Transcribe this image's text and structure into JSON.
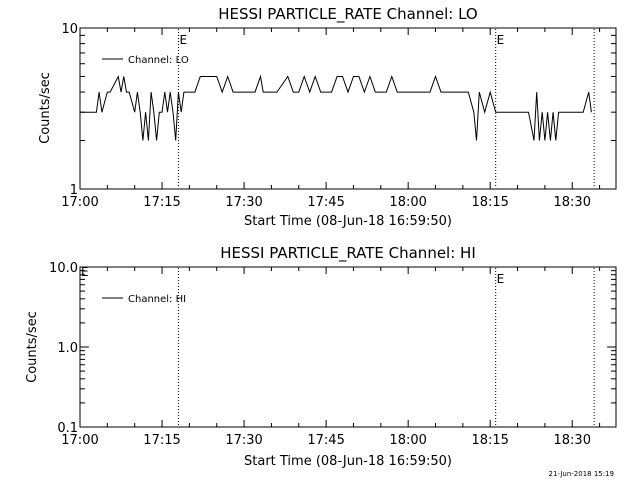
{
  "footer_timestamp": "21-Jun-2018 15:19",
  "colors": {
    "background": "#ffffff",
    "ink": "#000000"
  },
  "chart_data": [
    {
      "type": "line",
      "title": "HESSI PARTICLE_RATE Channel: LO",
      "xlabel": "Start Time (08-Jun-18 16:59:50)",
      "ylabel": "Counts/sec",
      "y_scale": "log",
      "xlim": [
        "17:00",
        "18:38"
      ],
      "ylim": [
        1,
        10
      ],
      "x_tick_labels": [
        "17:00",
        "17:15",
        "17:30",
        "17:45",
        "18:00",
        "18:15",
        "18:30"
      ],
      "y_tick_labels": [
        "1",
        "10"
      ],
      "y_tick_values": [
        1,
        10
      ],
      "event_markers": [
        {
          "time": "17:18",
          "label": "E"
        },
        {
          "time": "18:16",
          "label": "E"
        },
        {
          "time": "18:34",
          "label": ""
        }
      ],
      "legend": {
        "placement": "top-left",
        "entries": [
          "Channel: LO"
        ]
      },
      "series": [
        {
          "name": "Channel: LO",
          "x": [
            "17:00",
            "17:03",
            "17:03.5",
            "17:04",
            "17:05",
            "17:05.5",
            "17:07",
            "17:07.5",
            "17:08",
            "17:08.5",
            "17:09",
            "17:10",
            "17:10.5",
            "17:11",
            "17:11.5",
            "17:12",
            "17:12.5",
            "17:13",
            "17:13.5",
            "17:14",
            "17:14.5",
            "17:15",
            "17:15.5",
            "17:16",
            "17:16.5",
            "17:17",
            "17:17.5",
            "17:18",
            "17:18.5",
            "17:19",
            "17:20",
            "17:21",
            "17:22",
            "17:25",
            "17:26",
            "17:27",
            "17:28",
            "17:29",
            "17:30",
            "17:32",
            "17:33",
            "17:33.5",
            "17:34",
            "17:36",
            "17:38",
            "17:39",
            "17:40",
            "17:41",
            "17:42",
            "17:43",
            "17:44",
            "17:45",
            "17:46",
            "17:47",
            "17:48",
            "17:49",
            "17:50",
            "17:51",
            "17:52",
            "17:53",
            "17:54",
            "17:56",
            "17:57",
            "17:58",
            "18:00",
            "18:02",
            "18:04",
            "18:05",
            "18:06",
            "18:08",
            "18:10",
            "18:11",
            "18:12",
            "18:12.5",
            "18:13",
            "18:14",
            "18:15",
            "18:16",
            "18:18",
            "18:20",
            "18:22",
            "18:23",
            "18:23.5",
            "18:24",
            "18:24.5",
            "18:25",
            "18:25.5",
            "18:26",
            "18:26.5",
            "18:27",
            "18:27.5",
            "18:28",
            "18:30",
            "18:32",
            "18:33",
            "18:33.5"
          ],
          "values": [
            3,
            3,
            4,
            3,
            4,
            4,
            5,
            4,
            5,
            4,
            4,
            3,
            4,
            3,
            2,
            3,
            2,
            4,
            3,
            2,
            3,
            3,
            4,
            3,
            4,
            3,
            2,
            4,
            3,
            4,
            4,
            4,
            5,
            5,
            4,
            5,
            4,
            4,
            4,
            4,
            5,
            4,
            4,
            4,
            5,
            4,
            4,
            5,
            4,
            5,
            4,
            4,
            4,
            5,
            5,
            4,
            5,
            5,
            4,
            5,
            4,
            4,
            5,
            4,
            4,
            4,
            4,
            5,
            4,
            4,
            4,
            4,
            3,
            2,
            4,
            3,
            4,
            3,
            3,
            3,
            3,
            2,
            4,
            2,
            3,
            2,
            3,
            2,
            3,
            2,
            3,
            3,
            3,
            3,
            4,
            3
          ]
        }
      ]
    },
    {
      "type": "line",
      "title": "HESSI PARTICLE_RATE Channel: HI",
      "xlabel": "Start Time (08-Jun-18 16:59:50)",
      "ylabel": "Counts/sec",
      "y_scale": "log",
      "xlim": [
        "17:00",
        "18:38"
      ],
      "ylim": [
        0.1,
        10
      ],
      "x_tick_labels": [
        "17:00",
        "17:15",
        "17:30",
        "17:45",
        "18:00",
        "18:15",
        "18:30"
      ],
      "y_tick_labels": [
        "0.1",
        "1.0",
        "10.0"
      ],
      "y_tick_values": [
        0.1,
        1,
        10
      ],
      "event_markers": [
        {
          "time": "17:18",
          "label": ""
        },
        {
          "time": "18:16",
          "label": "E"
        },
        {
          "time": "18:34",
          "label": ""
        }
      ],
      "corner_marker": "E",
      "legend": {
        "placement": "top-left",
        "entries": [
          "Channel: HI"
        ]
      },
      "series": [
        {
          "name": "Channel: HI",
          "x": [],
          "values": []
        }
      ]
    }
  ]
}
